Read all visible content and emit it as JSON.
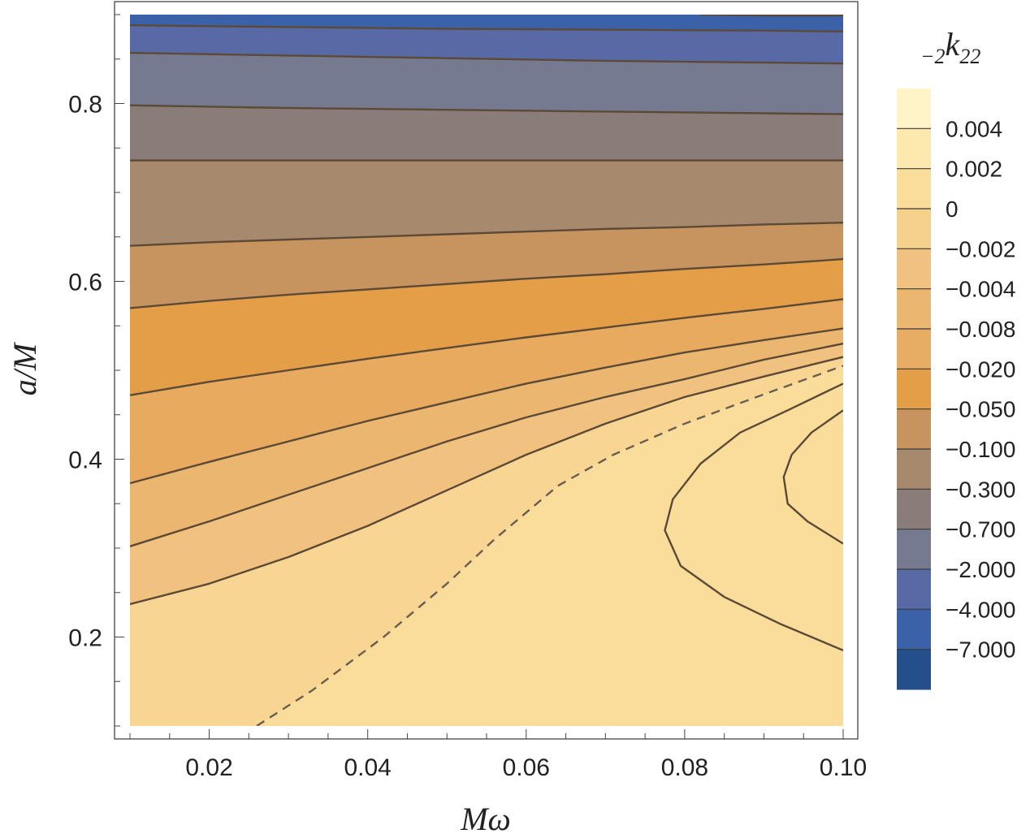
{
  "chart_data": {
    "type": "contour",
    "xlabel": "Mω",
    "ylabel": "a/M",
    "colorbar_label": {
      "prefix": "2",
      "main": "k",
      "suffix": "22"
    },
    "xlim": [
      0.01,
      0.1
    ],
    "ylim": [
      0.1,
      0.9
    ],
    "x_ticks": [
      {
        "value": 0.02,
        "label": "0.02"
      },
      {
        "value": 0.04,
        "label": "0.04"
      },
      {
        "value": 0.06,
        "label": "0.06"
      },
      {
        "value": 0.08,
        "label": "0.08"
      },
      {
        "value": 0.1,
        "label": "0.10"
      }
    ],
    "y_ticks": [
      {
        "value": 0.2,
        "label": "0.2"
      },
      {
        "value": 0.4,
        "label": "0.4"
      },
      {
        "value": 0.6,
        "label": "0.6"
      },
      {
        "value": 0.8,
        "label": "0.8"
      }
    ],
    "colorbar_levels": [
      "0.004",
      "0.002",
      "0",
      "−0.002",
      "−0.004",
      "−0.008",
      "−0.020",
      "−0.050",
      "−0.100",
      "−0.300",
      "−0.700",
      "−2.000",
      "−4.000",
      "−7.000"
    ],
    "colorbar_colors": [
      "#fef4c8",
      "#fde8ad",
      "#fadd9a",
      "#f6d18c",
      "#f1c27f",
      "#ebb66f",
      "#e8ad64",
      "#e39e47",
      "#c79460",
      "#a78a6e",
      "#8a7c78",
      "#757a90",
      "#586aa6",
      "#3b61a8",
      "#244f8a"
    ],
    "contours": [
      {
        "level": "0.004",
        "points": [
          [
            0.1,
            0.455
          ],
          [
            0.096,
            0.43
          ],
          [
            0.0935,
            0.405
          ],
          [
            0.0925,
            0.38
          ],
          [
            0.093,
            0.35
          ],
          [
            0.0955,
            0.33
          ],
          [
            0.1,
            0.305
          ]
        ]
      },
      {
        "level": "0.002",
        "points": [
          [
            0.1,
            0.485
          ],
          [
            0.093,
            0.455
          ],
          [
            0.087,
            0.43
          ],
          [
            0.082,
            0.395
          ],
          [
            0.0785,
            0.355
          ],
          [
            0.0775,
            0.32
          ],
          [
            0.0795,
            0.28
          ],
          [
            0.085,
            0.245
          ],
          [
            0.092,
            0.215
          ],
          [
            0.1,
            0.185
          ]
        ]
      },
      {
        "level": "0",
        "dashed": true,
        "points": [
          [
            0.026,
            0.1
          ],
          [
            0.033,
            0.14
          ],
          [
            0.042,
            0.2
          ],
          [
            0.05,
            0.26
          ],
          [
            0.056,
            0.31
          ],
          [
            0.064,
            0.37
          ],
          [
            0.071,
            0.405
          ],
          [
            0.08,
            0.44
          ],
          [
            0.09,
            0.473
          ],
          [
            0.1,
            0.505
          ]
        ]
      },
      {
        "level": "−0.002",
        "points": [
          [
            0.01,
            0.237
          ],
          [
            0.02,
            0.26
          ],
          [
            0.03,
            0.29
          ],
          [
            0.04,
            0.325
          ],
          [
            0.05,
            0.365
          ],
          [
            0.06,
            0.405
          ],
          [
            0.07,
            0.44
          ],
          [
            0.08,
            0.47
          ],
          [
            0.09,
            0.493
          ],
          [
            0.1,
            0.515
          ]
        ]
      },
      {
        "level": "−0.004",
        "points": [
          [
            0.01,
            0.302
          ],
          [
            0.02,
            0.33
          ],
          [
            0.03,
            0.36
          ],
          [
            0.04,
            0.39
          ],
          [
            0.05,
            0.42
          ],
          [
            0.06,
            0.447
          ],
          [
            0.07,
            0.47
          ],
          [
            0.08,
            0.49
          ],
          [
            0.09,
            0.512
          ],
          [
            0.1,
            0.53
          ]
        ]
      },
      {
        "level": "−0.008",
        "points": [
          [
            0.01,
            0.373
          ],
          [
            0.02,
            0.397
          ],
          [
            0.03,
            0.42
          ],
          [
            0.04,
            0.443
          ],
          [
            0.05,
            0.464
          ],
          [
            0.06,
            0.485
          ],
          [
            0.07,
            0.503
          ],
          [
            0.08,
            0.52
          ],
          [
            0.09,
            0.534
          ],
          [
            0.1,
            0.547
          ]
        ]
      },
      {
        "level": "−0.020",
        "points": [
          [
            0.01,
            0.472
          ],
          [
            0.02,
            0.487
          ],
          [
            0.03,
            0.5
          ],
          [
            0.04,
            0.513
          ],
          [
            0.05,
            0.525
          ],
          [
            0.06,
            0.537
          ],
          [
            0.07,
            0.548
          ],
          [
            0.08,
            0.559
          ],
          [
            0.09,
            0.569
          ],
          [
            0.1,
            0.58
          ]
        ]
      },
      {
        "level": "−0.050",
        "points": [
          [
            0.01,
            0.57
          ],
          [
            0.02,
            0.578
          ],
          [
            0.03,
            0.585
          ],
          [
            0.04,
            0.591
          ],
          [
            0.05,
            0.597
          ],
          [
            0.06,
            0.603
          ],
          [
            0.07,
            0.608
          ],
          [
            0.08,
            0.614
          ],
          [
            0.09,
            0.619
          ],
          [
            0.1,
            0.625
          ]
        ]
      },
      {
        "level": "−0.100",
        "points": [
          [
            0.01,
            0.64
          ],
          [
            0.02,
            0.644
          ],
          [
            0.03,
            0.647
          ],
          [
            0.04,
            0.65
          ],
          [
            0.05,
            0.653
          ],
          [
            0.06,
            0.656
          ],
          [
            0.07,
            0.659
          ],
          [
            0.08,
            0.661
          ],
          [
            0.09,
            0.664
          ],
          [
            0.1,
            0.666
          ]
        ]
      },
      {
        "level": "−0.300",
        "points": [
          [
            0.01,
            0.736
          ],
          [
            0.03,
            0.736
          ],
          [
            0.05,
            0.736
          ],
          [
            0.07,
            0.736
          ],
          [
            0.09,
            0.736
          ],
          [
            0.1,
            0.736
          ]
        ]
      },
      {
        "level": "−0.700",
        "points": [
          [
            0.01,
            0.798
          ],
          [
            0.03,
            0.795
          ],
          [
            0.05,
            0.793
          ],
          [
            0.07,
            0.791
          ],
          [
            0.09,
            0.789
          ],
          [
            0.1,
            0.788
          ]
        ]
      },
      {
        "level": "−2.000",
        "points": [
          [
            0.01,
            0.857
          ],
          [
            0.03,
            0.854
          ],
          [
            0.05,
            0.851
          ],
          [
            0.07,
            0.848
          ],
          [
            0.09,
            0.846
          ],
          [
            0.1,
            0.845
          ]
        ]
      },
      {
        "level": "−4.000",
        "points": [
          [
            0.01,
            0.888
          ],
          [
            0.03,
            0.886
          ],
          [
            0.05,
            0.884
          ],
          [
            0.07,
            0.883
          ],
          [
            0.09,
            0.882
          ],
          [
            0.1,
            0.881
          ]
        ]
      },
      {
        "level": "−7.000",
        "points": [
          [
            0.082,
            0.9
          ],
          [
            0.09,
            0.899
          ],
          [
            0.1,
            0.899
          ]
        ]
      }
    ]
  }
}
